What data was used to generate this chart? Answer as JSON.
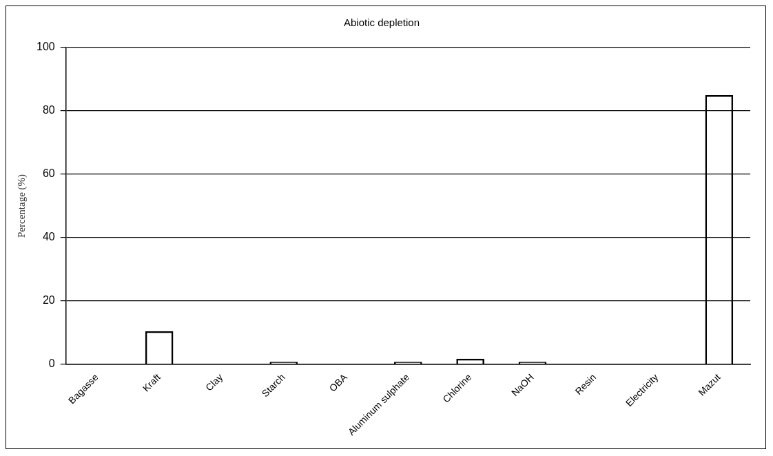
{
  "chart_data": {
    "type": "bar",
    "title": "Abiotic depletion",
    "ylabel": "Percentage (%)",
    "categories": [
      "Bagasse",
      "Kraft",
      "Clay",
      "Starch",
      "OBA",
      "Aluminum sulphate",
      "Chlorine",
      "NaOH",
      "Resin",
      "Electricity",
      "Mazut"
    ],
    "values": [
      0.2,
      10.5,
      0.2,
      0.8,
      0.2,
      0.8,
      1.8,
      0.8,
      0.2,
      0.2,
      85
    ],
    "color": "#000000",
    "ylim": [
      0,
      100
    ],
    "yticks": [
      0,
      20,
      40,
      60,
      80,
      100
    ],
    "grid": "y",
    "legend": false
  }
}
